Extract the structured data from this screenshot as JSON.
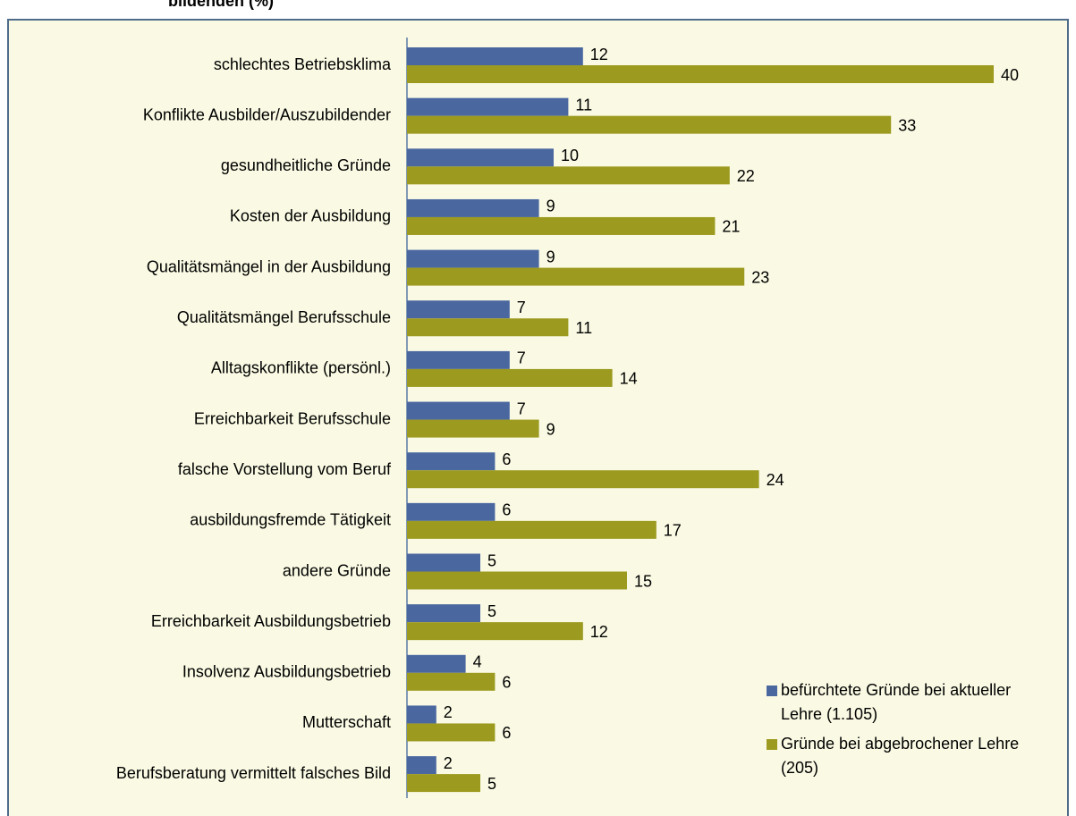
{
  "chart_data": {
    "type": "bar",
    "orientation": "horizontal",
    "title": "bildenden (%)",
    "categories": [
      "schlechtes Betriebsklima",
      "Konflikte Ausbilder/Auszubildender",
      "gesundheitliche Gründe",
      "Kosten der Ausbildung",
      "Qualitätsmängel in der Ausbildung",
      "Qualitätsmängel Berufsschule",
      "Alltagskonflikte (persönl.)",
      "Erreichbarkeit Berufsschule",
      "falsche Vorstellung vom Beruf",
      "ausbildungsfremde Tätigkeit",
      "andere Gründe",
      "Erreichbarkeit Ausbildungsbetrieb",
      "Insolvenz Ausbildungsbetrieb",
      "Mutterschaft",
      "Berufsberatung vermittelt falsches Bild"
    ],
    "series": [
      {
        "name": "befürchtete Gründe bei aktueller Lehre (1.105)",
        "color": "#4a67a0",
        "values": [
          12,
          11,
          10,
          9,
          9,
          7,
          7,
          7,
          6,
          6,
          5,
          5,
          4,
          2,
          2
        ]
      },
      {
        "name": "Gründe bei abgebrochener Lehre (205)",
        "color": "#9c9a1f",
        "values": [
          40,
          33,
          22,
          21,
          23,
          11,
          14,
          9,
          24,
          17,
          15,
          12,
          6,
          6,
          5
        ]
      }
    ],
    "legend": "bottom-right"
  }
}
